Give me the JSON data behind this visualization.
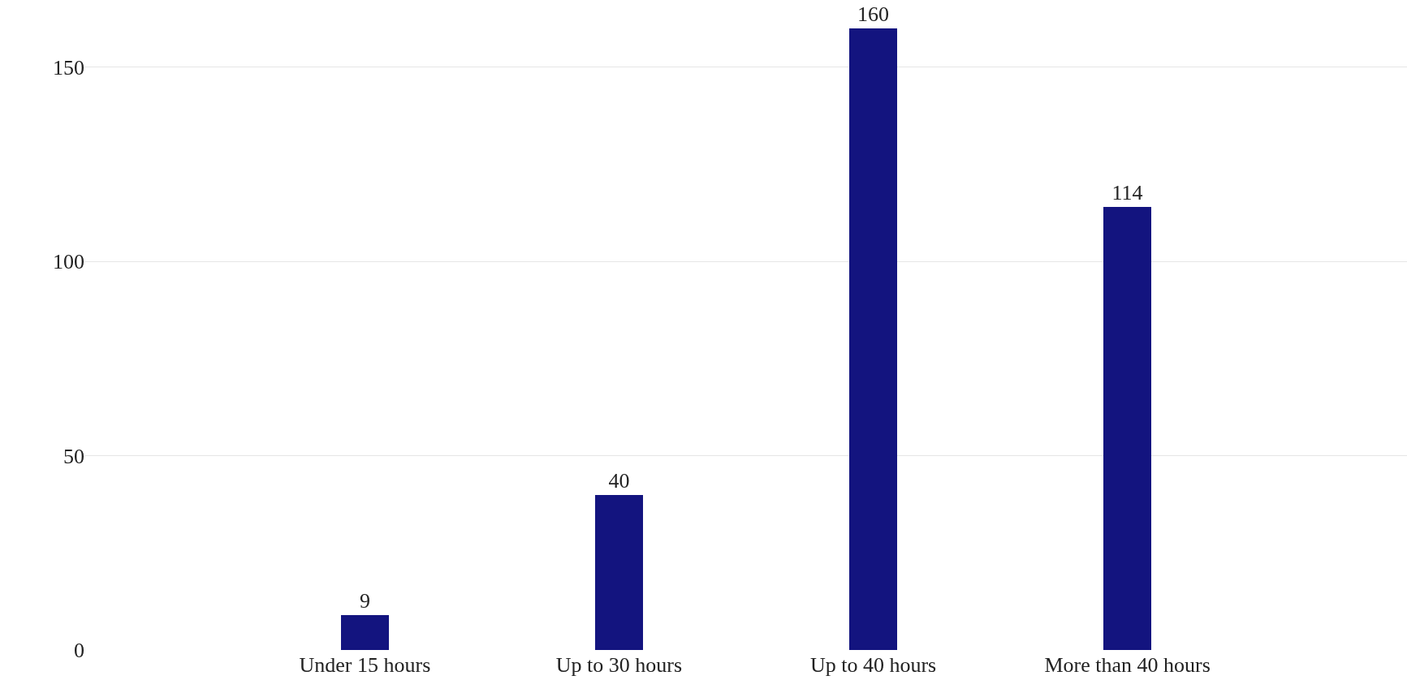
{
  "chart_data": {
    "type": "bar",
    "categories": [
      "Under 15 hours",
      "Up to 30 hours",
      "Up to 40 hours",
      "More than 40 hours"
    ],
    "values": [
      9,
      40,
      160,
      114
    ],
    "color": "#13147f",
    "ylim": [
      0,
      160
    ],
    "yticks": [
      0,
      50,
      100,
      150
    ],
    "grid": "y",
    "data_labels": true
  }
}
